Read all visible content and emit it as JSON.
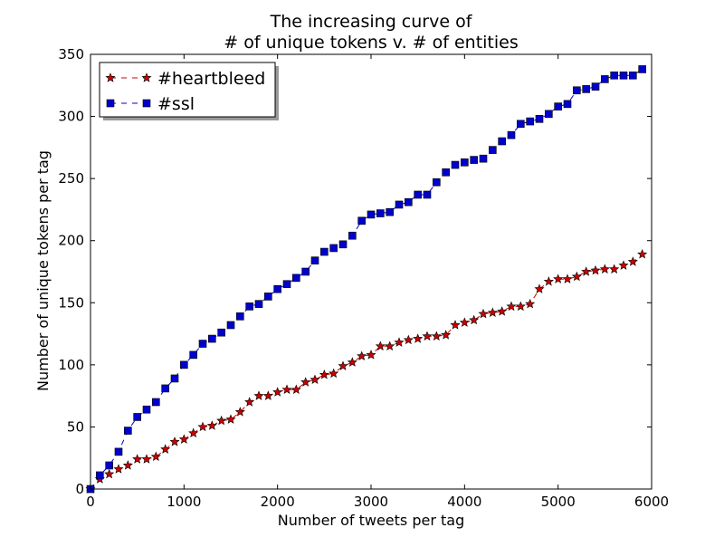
{
  "chart_data": {
    "type": "line",
    "title_lines": [
      "The increasing curve of",
      "# of unique tokens v. # of entities"
    ],
    "xlabel": "Number of tweets per tag",
    "ylabel": "Number of unique tokens per tag",
    "xlim": [
      0,
      6000
    ],
    "ylim": [
      0,
      350
    ],
    "xticks": [
      0,
      1000,
      2000,
      3000,
      4000,
      5000,
      6000
    ],
    "yticks": [
      0,
      50,
      100,
      150,
      200,
      250,
      300,
      350
    ],
    "grid": false,
    "legend_position": "top-left",
    "x": [
      0,
      100,
      200,
      300,
      400,
      500,
      600,
      700,
      800,
      900,
      1000,
      1100,
      1200,
      1300,
      1400,
      1500,
      1600,
      1700,
      1800,
      1900,
      2000,
      2100,
      2200,
      2300,
      2400,
      2500,
      2600,
      2700,
      2800,
      2900,
      3000,
      3100,
      3200,
      3300,
      3400,
      3500,
      3600,
      3700,
      3800,
      3900,
      4000,
      4100,
      4200,
      4300,
      4400,
      4500,
      4600,
      4700,
      4800,
      4900,
      5000,
      5100,
      5200,
      5300,
      5400,
      5500,
      5600,
      5700,
      5800,
      5900
    ],
    "series": [
      {
        "name": "#heartbleed",
        "color": "#cc0000",
        "marker": "star",
        "linestyle": "dashed",
        "values": [
          0,
          8,
          12,
          16,
          19,
          24,
          24,
          26,
          32,
          38,
          40,
          45,
          50,
          51,
          55,
          56,
          62,
          70,
          75,
          75,
          78,
          80,
          80,
          86,
          88,
          92,
          93,
          99,
          102,
          107,
          108,
          115,
          115,
          118,
          120,
          121,
          123,
          123,
          124,
          132,
          134,
          136,
          141,
          142,
          143,
          147,
          147,
          149,
          161,
          167,
          169,
          169,
          171,
          175,
          176,
          177,
          177,
          180,
          183,
          189
        ]
      },
      {
        "name": "#ssl",
        "color": "#0000cc",
        "marker": "square",
        "linestyle": "dashed",
        "values": [
          0,
          11,
          19,
          30,
          47,
          58,
          64,
          70,
          81,
          89,
          100,
          108,
          117,
          121,
          126,
          132,
          139,
          147,
          149,
          155,
          161,
          165,
          170,
          175,
          184,
          191,
          194,
          197,
          204,
          216,
          221,
          222,
          223,
          229,
          231,
          237,
          237,
          247,
          255,
          261,
          263,
          265,
          266,
          273,
          280,
          285,
          294,
          296,
          298,
          302,
          308,
          310,
          321,
          322,
          324,
          330,
          333,
          333,
          333,
          338
        ]
      }
    ]
  }
}
